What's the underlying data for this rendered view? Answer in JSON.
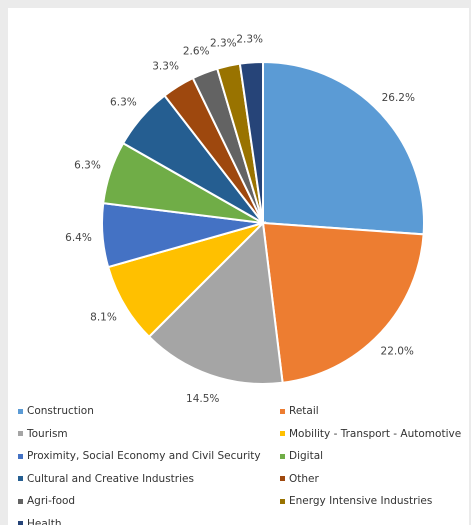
{
  "chart_data": {
    "type": "pie",
    "slices": [
      {
        "name": "Construction",
        "value": 26.2,
        "label": "26.2%",
        "color": "#5b9bd5"
      },
      {
        "name": "Retail",
        "value": 22.0,
        "label": "22.0%",
        "color": "#ed7d31"
      },
      {
        "name": "Tourism",
        "value": 14.5,
        "label": "14.5%",
        "color": "#a5a5a5"
      },
      {
        "name": "Mobility - Transport - Automotive",
        "value": 8.1,
        "label": "8.1%",
        "color": "#ffc000"
      },
      {
        "name": "Proximity, Social Economy and Civil Security",
        "value": 6.4,
        "label": "6.4%",
        "color": "#4472c4"
      },
      {
        "name": "Digital",
        "value": 6.3,
        "label": "6.3%",
        "color": "#70ad47"
      },
      {
        "name": "Cultural and Creative Industries",
        "value": 6.3,
        "label": "6.3%",
        "color": "#255e91"
      },
      {
        "name": "Other",
        "value": 3.3,
        "label": "3.3%",
        "color": "#9e480e"
      },
      {
        "name": "Agri-food",
        "value": 2.6,
        "label": "2.6%",
        "color": "#636363"
      },
      {
        "name": "Energy Intensive Industries",
        "value": 2.3,
        "label": "2.3%",
        "color": "#997300"
      },
      {
        "name": "Health",
        "value": 2.3,
        "label": "2.3%",
        "color": "#264478"
      }
    ],
    "legend_position": "bottom"
  }
}
